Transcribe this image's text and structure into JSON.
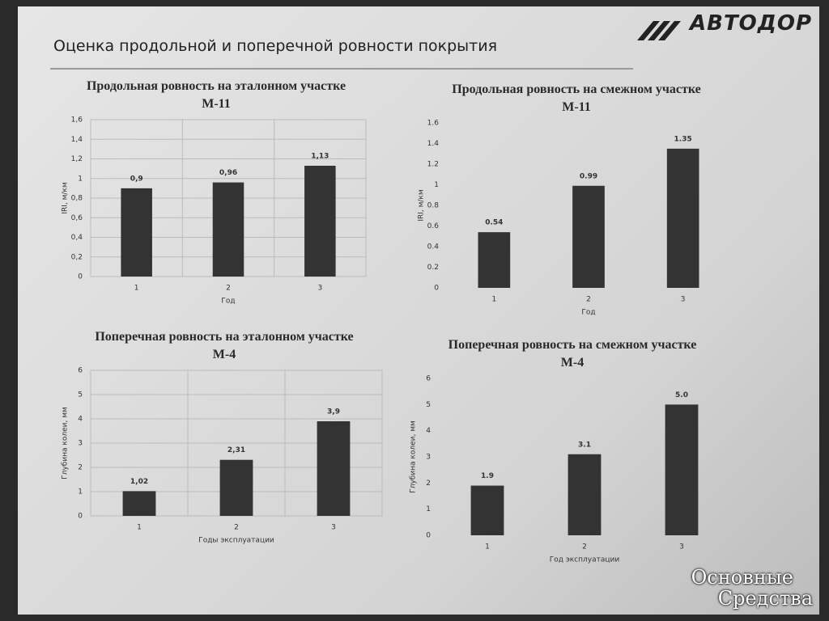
{
  "slide_title": "Оценка продольной и поперечной ровности покрытия",
  "logo": "АВТОДОР",
  "watermark": [
    "Основные",
    "Средства"
  ],
  "chart_data": [
    {
      "type": "bar",
      "title": "Продольная ровность на эталонном участке М-11",
      "y_label": "IRI, м/км",
      "x_label": "Год",
      "categories": [
        "1",
        "2",
        "3"
      ],
      "values": [
        0.9,
        0.96,
        1.13
      ],
      "value_labels": [
        "0,9",
        "0,96",
        "1,13"
      ],
      "color": "#333333",
      "ylim": [
        0,
        1.6
      ],
      "yticks": [
        0,
        {
          "value": 0.2,
          "label": "0,2"
        },
        {
          "value": 0.4,
          "label": "0,4"
        },
        {
          "value": 0.6,
          "label": "0,6"
        },
        {
          "value": 0.8,
          "label": "0,8"
        },
        1,
        {
          "value": 1.2,
          "label": "1,2"
        },
        {
          "value": 1.4,
          "label": "1,4"
        },
        {
          "value": 1.6,
          "label": "1,6"
        }
      ],
      "grid": true
    },
    {
      "type": "bar",
      "title": "Продольная ровность на смежном участке М-11",
      "y_label": "IRI, м/км",
      "x_label": "Год",
      "categories": [
        "1",
        "2",
        "3"
      ],
      "values": [
        0.54,
        0.99,
        1.35
      ],
      "color": "#333333",
      "ylim": [
        0,
        1.6
      ],
      "yticks": [
        0,
        0.2,
        0.4,
        0.6,
        0.8,
        1,
        1.2,
        1.4,
        1.6
      ],
      "grid": false
    },
    {
      "type": "bar",
      "title": "Поперечная ровность на эталонном участке М-4",
      "y_label": "Глубина колеи, мм",
      "x_label": "Годы эксплуатации",
      "categories": [
        "1",
        "2",
        "3"
      ],
      "values": [
        1.02,
        2.31,
        3.9
      ],
      "value_labels": [
        "1,02",
        "2,31",
        "3,9"
      ],
      "color": "#333333",
      "ylim": [
        0,
        6
      ],
      "yticks": [
        0,
        1,
        2,
        3,
        4,
        5,
        6
      ],
      "grid": true
    },
    {
      "type": "bar",
      "title": "Поперечная ровность на смежном участке М-4",
      "y_label": "Глубина колеи, мм",
      "x_label": "Год эксплуатации",
      "categories": [
        "1",
        "2",
        "3"
      ],
      "values": [
        1.9,
        3.1,
        5.0
      ],
      "value_labels": [
        "1.9",
        "3.1",
        "5.0"
      ],
      "color": "#333333",
      "ylim": [
        0,
        6
      ],
      "yticks": [
        0,
        1,
        2,
        3,
        4,
        5,
        6
      ],
      "grid": false
    }
  ]
}
